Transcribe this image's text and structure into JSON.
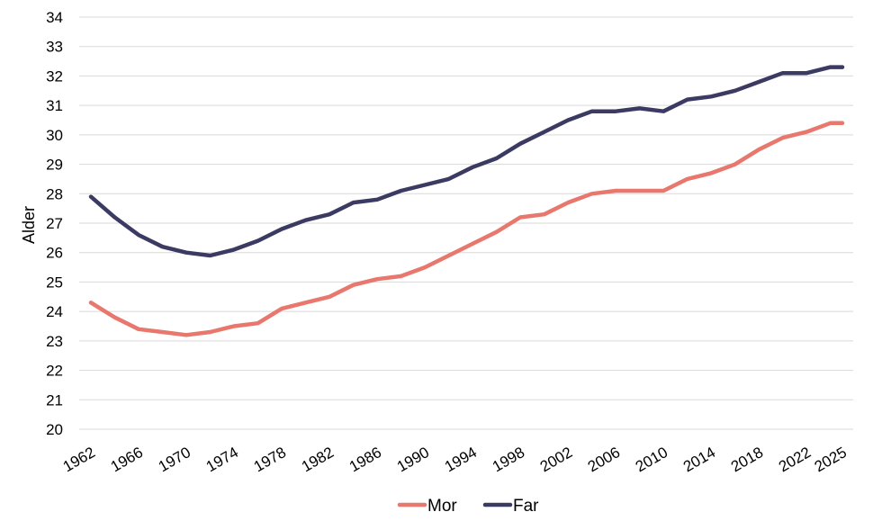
{
  "chart_data": {
    "type": "line",
    "xlabel": "",
    "ylabel": "Alder",
    "ylim": [
      20,
      34
    ],
    "y_ticks": [
      20,
      21,
      22,
      23,
      24,
      25,
      26,
      27,
      28,
      29,
      30,
      31,
      32,
      33,
      34
    ],
    "x_tick_labels": [
      "1962",
      "1966",
      "1970",
      "1974",
      "1978",
      "1982",
      "1986",
      "1990",
      "1994",
      "1998",
      "2002",
      "2006",
      "2010",
      "2014",
      "2018",
      "2022",
      "2025"
    ],
    "x": [
      1962,
      1964,
      1966,
      1968,
      1970,
      1972,
      1974,
      1976,
      1978,
      1980,
      1982,
      1984,
      1986,
      1988,
      1990,
      1992,
      1994,
      1996,
      1998,
      2000,
      2002,
      2004,
      2006,
      2008,
      2010,
      2012,
      2014,
      2016,
      2018,
      2020,
      2022,
      2024,
      2025
    ],
    "grid": true,
    "legend_position": "bottom",
    "series": [
      {
        "name": "Mor",
        "color": "#e8786d",
        "values": [
          24.3,
          23.8,
          23.4,
          23.3,
          23.2,
          23.3,
          23.5,
          23.6,
          24.1,
          24.3,
          24.5,
          24.9,
          25.1,
          25.2,
          25.5,
          25.9,
          26.3,
          26.7,
          27.2,
          27.3,
          27.7,
          28.0,
          28.1,
          28.1,
          28.1,
          28.5,
          28.7,
          29.0,
          29.5,
          29.9,
          30.1,
          30.4,
          30.4
        ]
      },
      {
        "name": "Far",
        "color": "#3b3a62",
        "values": [
          27.9,
          27.2,
          26.6,
          26.2,
          26.0,
          25.9,
          26.1,
          26.4,
          26.8,
          27.1,
          27.3,
          27.7,
          27.8,
          28.1,
          28.3,
          28.5,
          28.9,
          29.2,
          29.7,
          30.1,
          30.5,
          30.8,
          30.8,
          30.9,
          30.8,
          31.2,
          31.3,
          31.5,
          31.8,
          32.1,
          32.1,
          32.3,
          32.3
        ]
      }
    ]
  }
}
